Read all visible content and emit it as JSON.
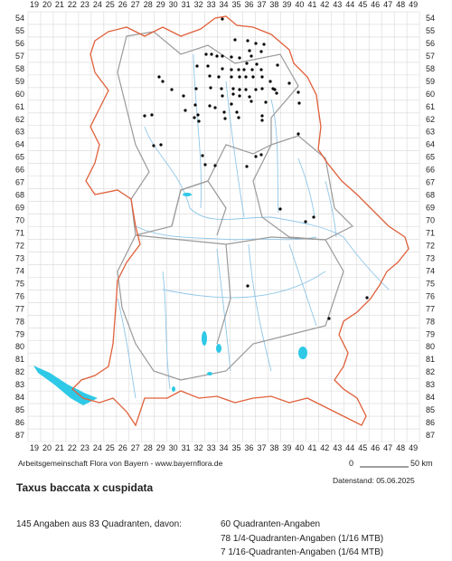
{
  "map": {
    "columns": [
      "19",
      "20",
      "21",
      "22",
      "23",
      "24",
      "25",
      "26",
      "27",
      "28",
      "29",
      "30",
      "31",
      "32",
      "33",
      "34",
      "35",
      "36",
      "37",
      "38",
      "39",
      "40",
      "41",
      "42",
      "43",
      "44",
      "45",
      "46",
      "47",
      "48",
      "49"
    ],
    "rows": [
      "54",
      "55",
      "56",
      "57",
      "58",
      "59",
      "60",
      "61",
      "62",
      "63",
      "64",
      "65",
      "66",
      "67",
      "68",
      "69",
      "70",
      "71",
      "72",
      "73",
      "74",
      "75",
      "76",
      "77",
      "78",
      "79",
      "80",
      "81",
      "82",
      "83",
      "84",
      "85",
      "86",
      "87"
    ],
    "attribution": "Arbeitsgemeinschaft Flora von Bayern - www.bayernflora.de",
    "scale_start": "0",
    "scale_end": "50 km",
    "data_date": "Datenstand: 05.06.2025",
    "title": "Taxus baccata x cuspidata",
    "summary": "145 Angaben aus 83 Quadranten, davon:",
    "breakdown": [
      "60 Quadranten-Angaben",
      "78 1/4-Quadranten-Angaben (1/16 MTB)",
      "7 1/16-Quadranten-Angaben (1/64 MTB)"
    ]
  }
}
